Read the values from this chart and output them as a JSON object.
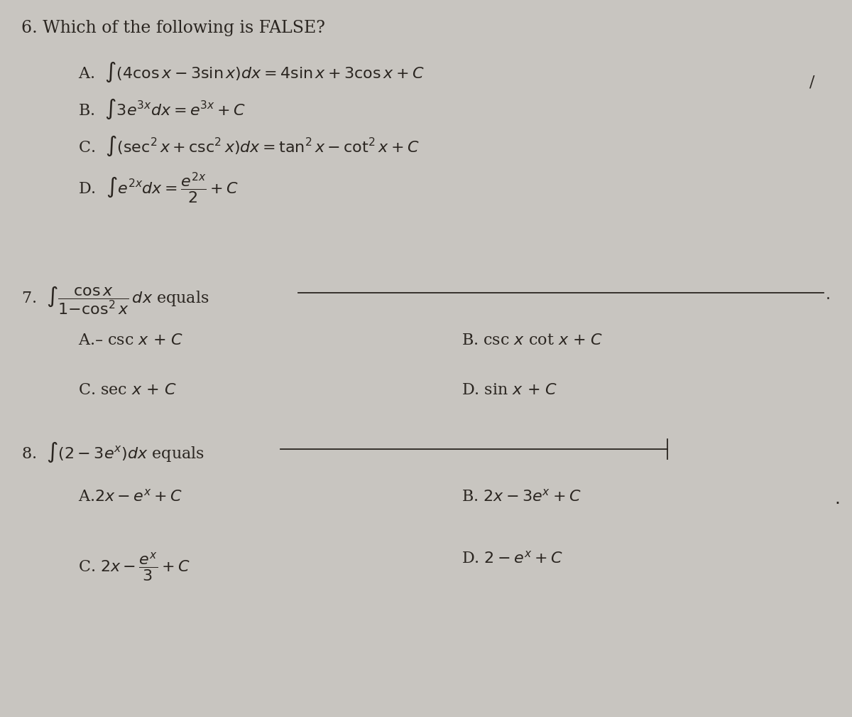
{
  "bg_color": "#c8c5c0",
  "text_color": "#2a2520",
  "fontsize_title": 17,
  "fontsize_main": 16,
  "fontsize_small": 13,
  "title_q6": "6. Which of the following is FALSE?",
  "q6_A": "A.  $\\int (4\\cos x - 3\\sin x)dx = 4\\sin x + 3\\cos x + C$",
  "q6_B": "B.  $\\int 3e^{3x}dx = e^{3x} + C$",
  "q6_C": "C.  $\\int (\\sec^2 x + \\csc^2 x)dx = \\tan^2 x - \\cot^2 x + C$",
  "q6_D": "D.  $\\int e^{2x}dx = \\dfrac{e^{2x}}{2} + C$",
  "q7_text": "7.  $\\int \\dfrac{\\cos x}{1{-}\\cos^2 x}\\,dx$ equals",
  "q7_A": "A.– csc $x$ + $C$",
  "q7_B": "B. csc $x$ cot $x$ + $C$",
  "q7_C": "C. sec $x$ + $C$",
  "q7_D": "D. sin $x$ + $C$",
  "q8_text": "8.  $\\int (2 - 3e^x)dx$ equals",
  "q8_A": "A.$2x - e^x + C$",
  "q8_B": "B. $2x - 3e^x + C$",
  "q8_C": "C. $2x - \\dfrac{e^x}{3} + C$",
  "q8_D": "D. $2 - e^x + C$"
}
